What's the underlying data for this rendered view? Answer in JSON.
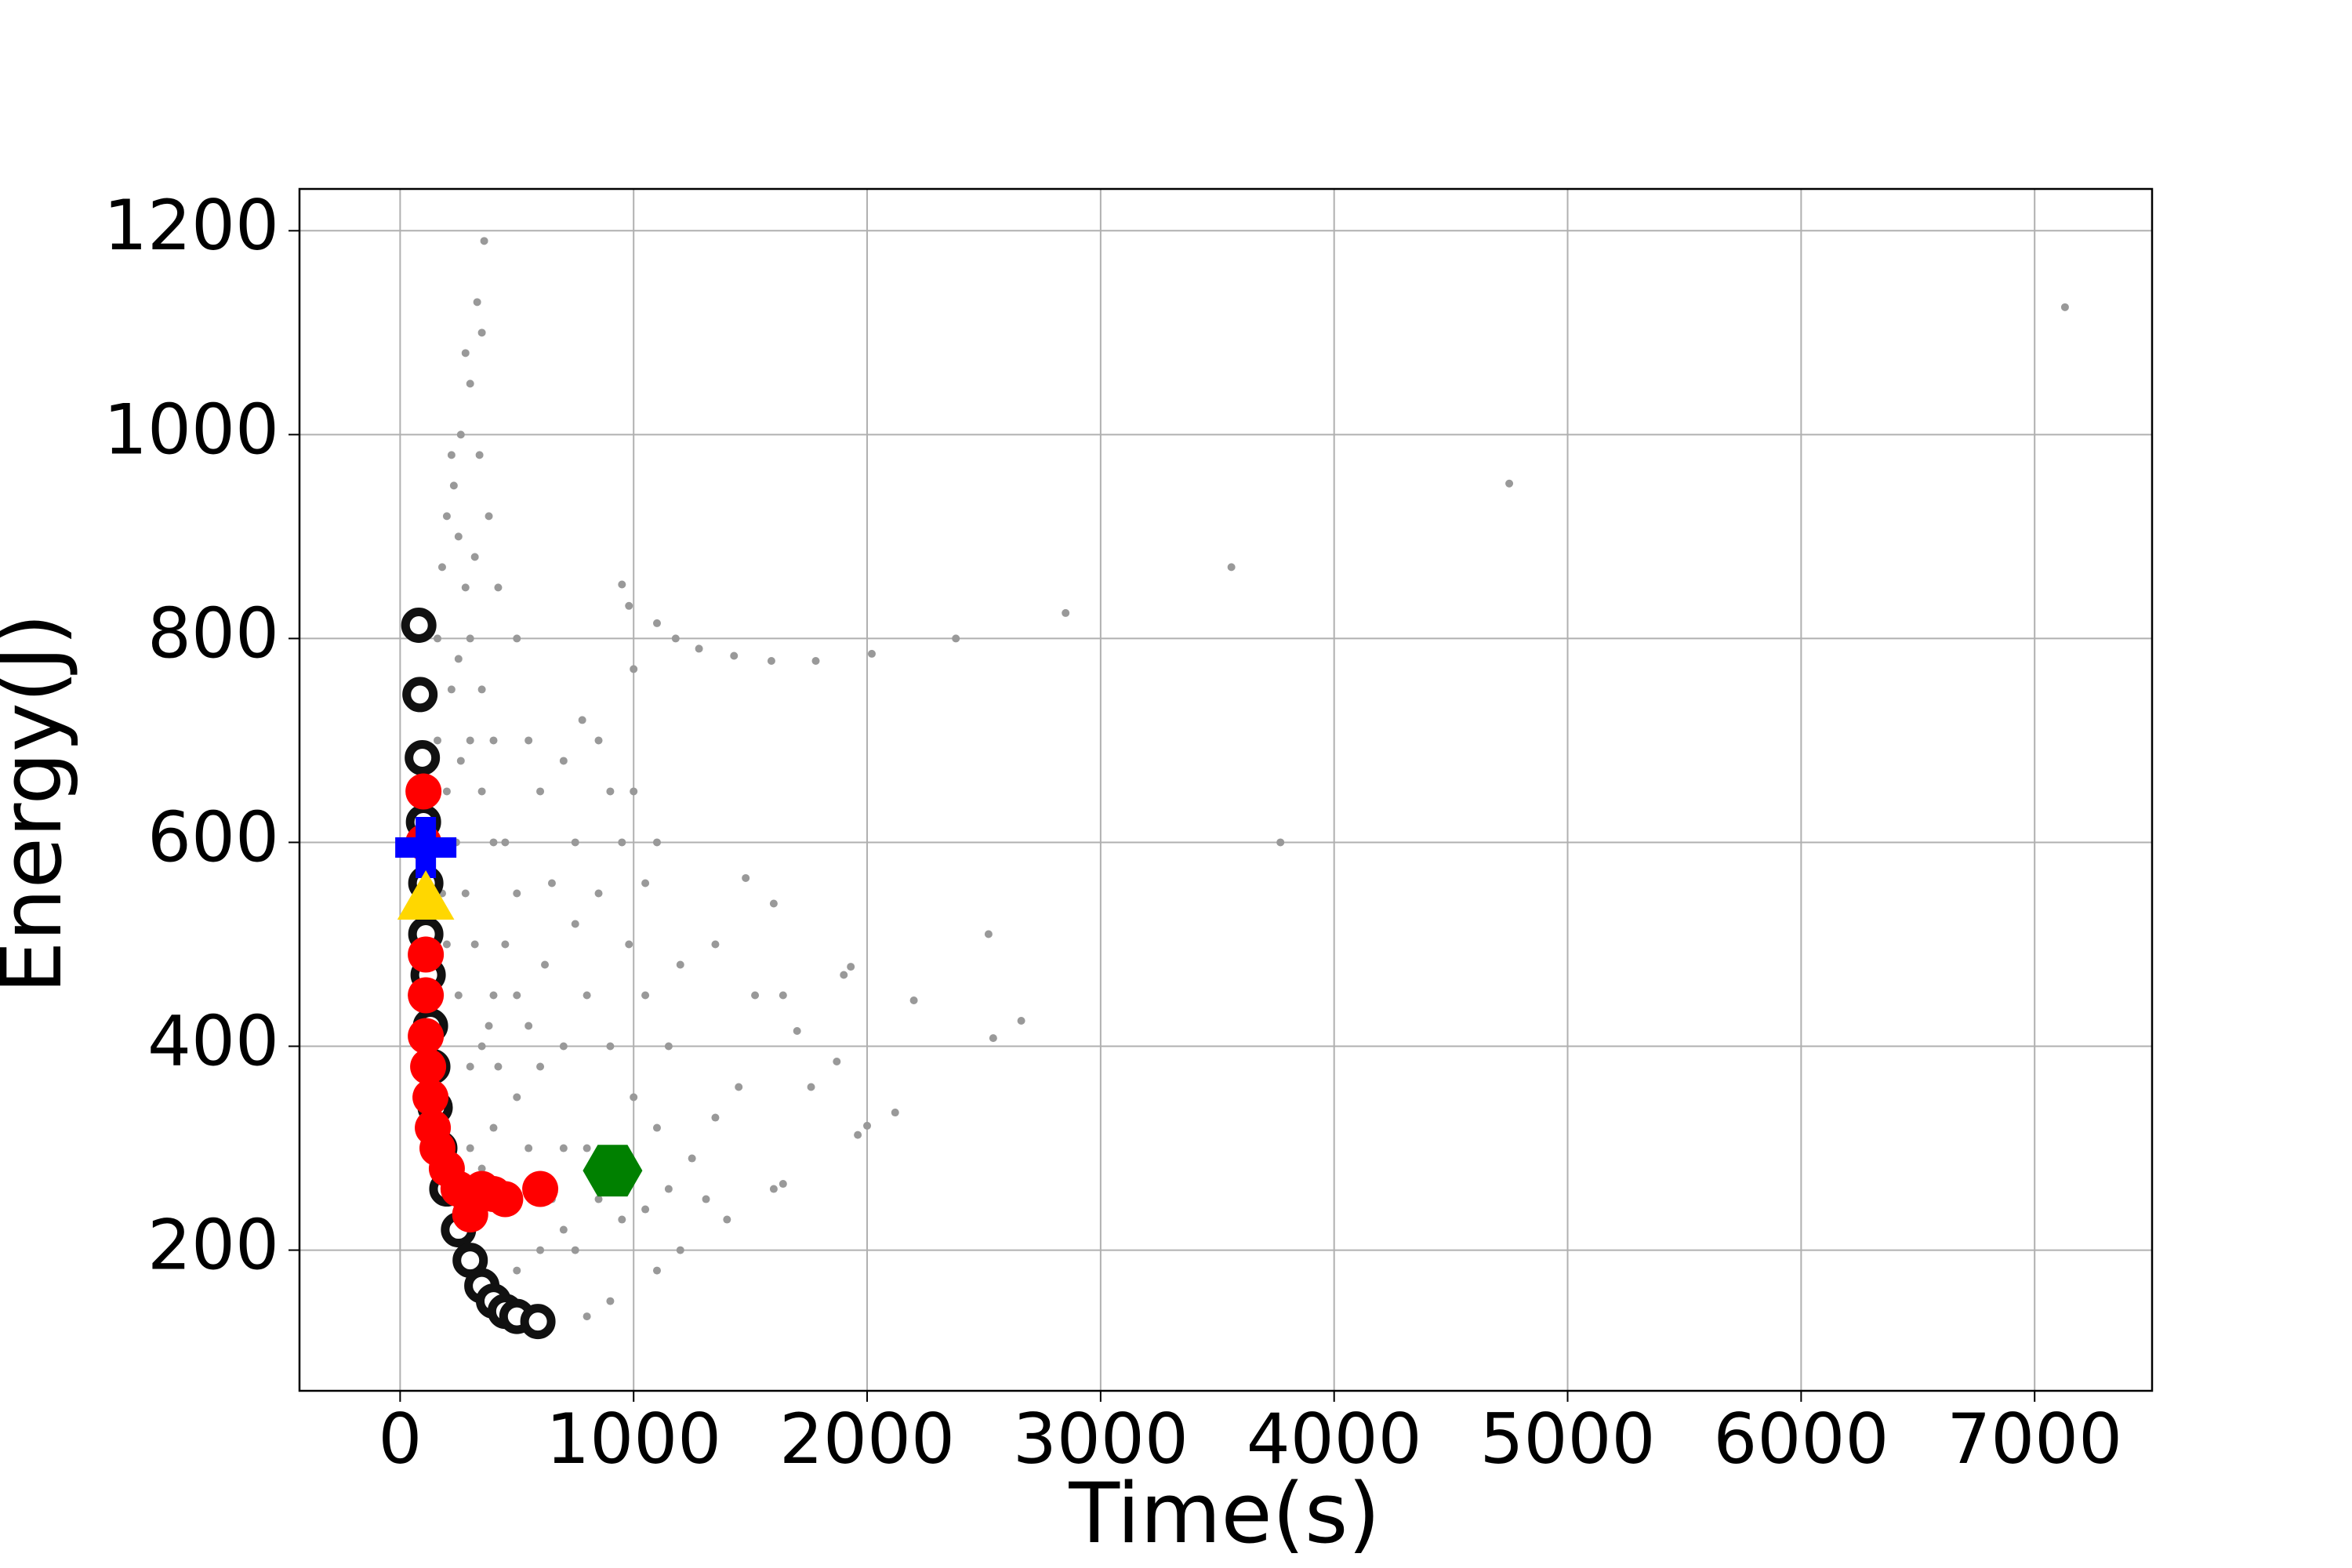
{
  "chart_data": {
    "type": "scatter",
    "x_label": "Time(s)",
    "y_label": "Energy(J)",
    "xlim": [
      -431,
      7503
    ],
    "ylim": [
      62,
      1241
    ],
    "xticks": [
      0,
      1000,
      2000,
      3000,
      4000,
      5000,
      6000,
      7000
    ],
    "yticks": [
      200,
      400,
      600,
      800,
      1000,
      1200
    ],
    "grid": true,
    "series": [
      {
        "color": "#999999",
        "marker": "dot",
        "x": [
          7130,
          4750,
          3560,
          3770,
          2850,
          2380,
          2020,
          1780,
          1590,
          1430,
          1280,
          1180,
          1100,
          980,
          950,
          1000,
          2520,
          2540,
          2660,
          2200,
          2120,
          2000,
          1960,
          1930,
          1900,
          1870,
          1760,
          1700,
          1640,
          1600,
          1480,
          1640,
          1600,
          1400,
          1200,
          1100,
          900,
          800,
          1310,
          1450,
          1520,
          1350,
          1200,
          1050,
          950,
          900,
          850,
          780,
          700,
          600,
          650,
          750,
          800,
          700,
          900,
          1000,
          1100,
          1000,
          800,
          600,
          500,
          500,
          450,
          400,
          350,
          300,
          280,
          250,
          230,
          260,
          300,
          350,
          360,
          330,
          280,
          220,
          200,
          180,
          250,
          300,
          350,
          400,
          450,
          400,
          350,
          500,
          550,
          650,
          700,
          750,
          600,
          500,
          450,
          400,
          300,
          250,
          200,
          180,
          200,
          220,
          160,
          160,
          180,
          280,
          320,
          380,
          420,
          550,
          620,
          700,
          850,
          950,
          1050,
          1150,
          1250,
          1350,
          1150,
          1050,
          980,
          1100,
          1000,
          850,
          750,
          550,
          500,
          420,
          380,
          340,
          320,
          260,
          240,
          300,
          350
        ],
        "values": [
          1125,
          952,
          870,
          600,
          825,
          800,
          785,
          778,
          778,
          783,
          790,
          800,
          815,
          832,
          853,
          770,
          510,
          408,
          425,
          445,
          335,
          322,
          313,
          478,
          470,
          385,
          360,
          415,
          450,
          540,
          565,
          265,
          260,
          230,
          200,
          180,
          150,
          135,
          250,
          360,
          450,
          500,
          480,
          560,
          600,
          650,
          700,
          720,
          680,
          650,
          560,
          520,
          450,
          400,
          400,
          350,
          320,
          280,
          300,
          380,
          450,
          550,
          600,
          700,
          750,
          800,
          850,
          900,
          950,
          1000,
          1050,
          1100,
          1190,
          1130,
          1080,
          980,
          920,
          870,
          780,
          700,
          650,
          600,
          500,
          450,
          400,
          350,
          300,
          250,
          220,
          200,
          200,
          180,
          250,
          320,
          380,
          450,
          500,
          550,
          650,
          750,
          800,
          700,
          600,
          550,
          500,
          420,
          380,
          420,
          480,
          300,
          250,
          230,
          240,
          260,
          290,
          330,
          400,
          450,
          500,
          600,
          650,
          550,
          600,
          700,
          800,
          850,
          920,
          980,
          880,
          680,
          600,
          300,
          280
        ]
      },
      {
        "color": "#111111",
        "marker": "ring",
        "x": [
          80,
          85,
          95,
          100,
          110,
          110,
          120,
          130,
          140,
          150,
          170,
          200,
          250,
          300,
          350,
          400,
          450,
          500,
          590
        ],
        "values": [
          813,
          745,
          683,
          620,
          560,
          510,
          470,
          420,
          380,
          340,
          300,
          260,
          220,
          190,
          165,
          150,
          140,
          135,
          130
        ]
      },
      {
        "color": "#ff0000",
        "marker": "circle",
        "x": [
          100,
          100,
          110,
          110,
          110,
          120,
          130,
          140,
          160,
          200,
          250,
          300,
          350,
          400,
          450,
          600,
          300
        ],
        "values": [
          650,
          600,
          490,
          450,
          410,
          380,
          350,
          320,
          300,
          280,
          260,
          250,
          260,
          255,
          250,
          260,
          235
        ]
      },
      {
        "color": "#0000ff",
        "marker": "plus",
        "x": [
          110
        ],
        "values": [
          595
        ]
      },
      {
        "color": "#ffd700",
        "marker": "triangle",
        "x": [
          110
        ],
        "values": [
          545
        ]
      },
      {
        "color": "#008000",
        "marker": "hexagon",
        "x": [
          910
        ],
        "values": [
          278
        ]
      }
    ]
  }
}
